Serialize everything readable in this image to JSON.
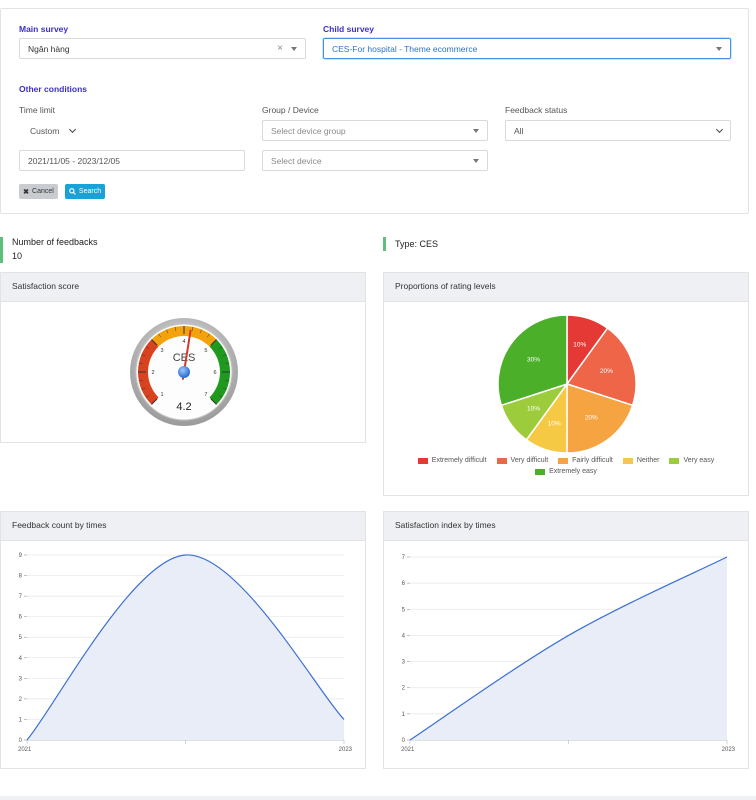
{
  "filters": {
    "main_survey_label": "Main survey",
    "main_survey_value": "Ngân hàng",
    "child_survey_label": "Child survey",
    "child_survey_value": "CES-For hospital - Theme ecommerce",
    "other_conditions_label": "Other conditions",
    "time_limit_label": "Time limit",
    "time_limit_value": "Custom",
    "date_range": "2021/11/05 - 2023/12/05",
    "group_device_label": "Group / Device",
    "device_group_placeholder": "Select device group",
    "device_placeholder": "Select device",
    "feedback_status_label": "Feedback status",
    "feedback_status_value": "All",
    "cancel_label": "Cancel",
    "search_label": "Search"
  },
  "stats": {
    "feedbacks_label": "Number of feedbacks",
    "feedbacks_value": "10",
    "type_label": "Type: CES"
  },
  "satisfaction": {
    "title": "Satisfaction score",
    "gauge_label": "CES",
    "score": "4.2",
    "score_value": 4.2,
    "min": 1,
    "max": 7,
    "ticks": [
      "1",
      "2",
      "3",
      "4",
      "5",
      "6",
      "7"
    ]
  },
  "proportions": {
    "title": "Proportions of rating levels",
    "chart_data": {
      "type": "pie",
      "labels": [
        "Extremely difficult",
        "Very difficult",
        "Fairly difficult",
        "Neither",
        "Very easy",
        "Extremely easy"
      ],
      "values": [
        10,
        20,
        20,
        10,
        10,
        30
      ],
      "value_labels": [
        "10%",
        "20%",
        "20%",
        "10%",
        "10%",
        "30%"
      ],
      "colors": [
        "#e53935",
        "#ef6548",
        "#f6a341",
        "#f6c945",
        "#9ccc3c",
        "#4caf2a"
      ]
    }
  },
  "feedback_count": {
    "title": "Feedback count by times",
    "chart_data": {
      "type": "area",
      "x_labels": [
        "2021",
        "2023"
      ],
      "y_ticks": [
        "0",
        "1",
        "2",
        "3",
        "4",
        "5",
        "6",
        "7",
        "8",
        "9"
      ],
      "ylim": [
        0,
        9
      ],
      "x": [
        2021,
        2022,
        2023
      ],
      "y": [
        0,
        9,
        1
      ]
    }
  },
  "satisfaction_index": {
    "title": "Satisfaction index by times",
    "chart_data": {
      "type": "area",
      "x_labels": [
        "2021",
        "2023"
      ],
      "y_ticks": [
        "0",
        "1",
        "2",
        "3",
        "4",
        "5",
        "6",
        "7"
      ],
      "ylim": [
        0,
        7
      ],
      "x": [
        2021,
        2022,
        2023
      ],
      "y": [
        0,
        4,
        7
      ]
    }
  },
  "colors": {
    "accent": "#3b2fc9",
    "search": "#17a2d8",
    "stat_border": "#5cc07a",
    "line": "#3b6fd1",
    "area_fill": "#e9edf8"
  }
}
